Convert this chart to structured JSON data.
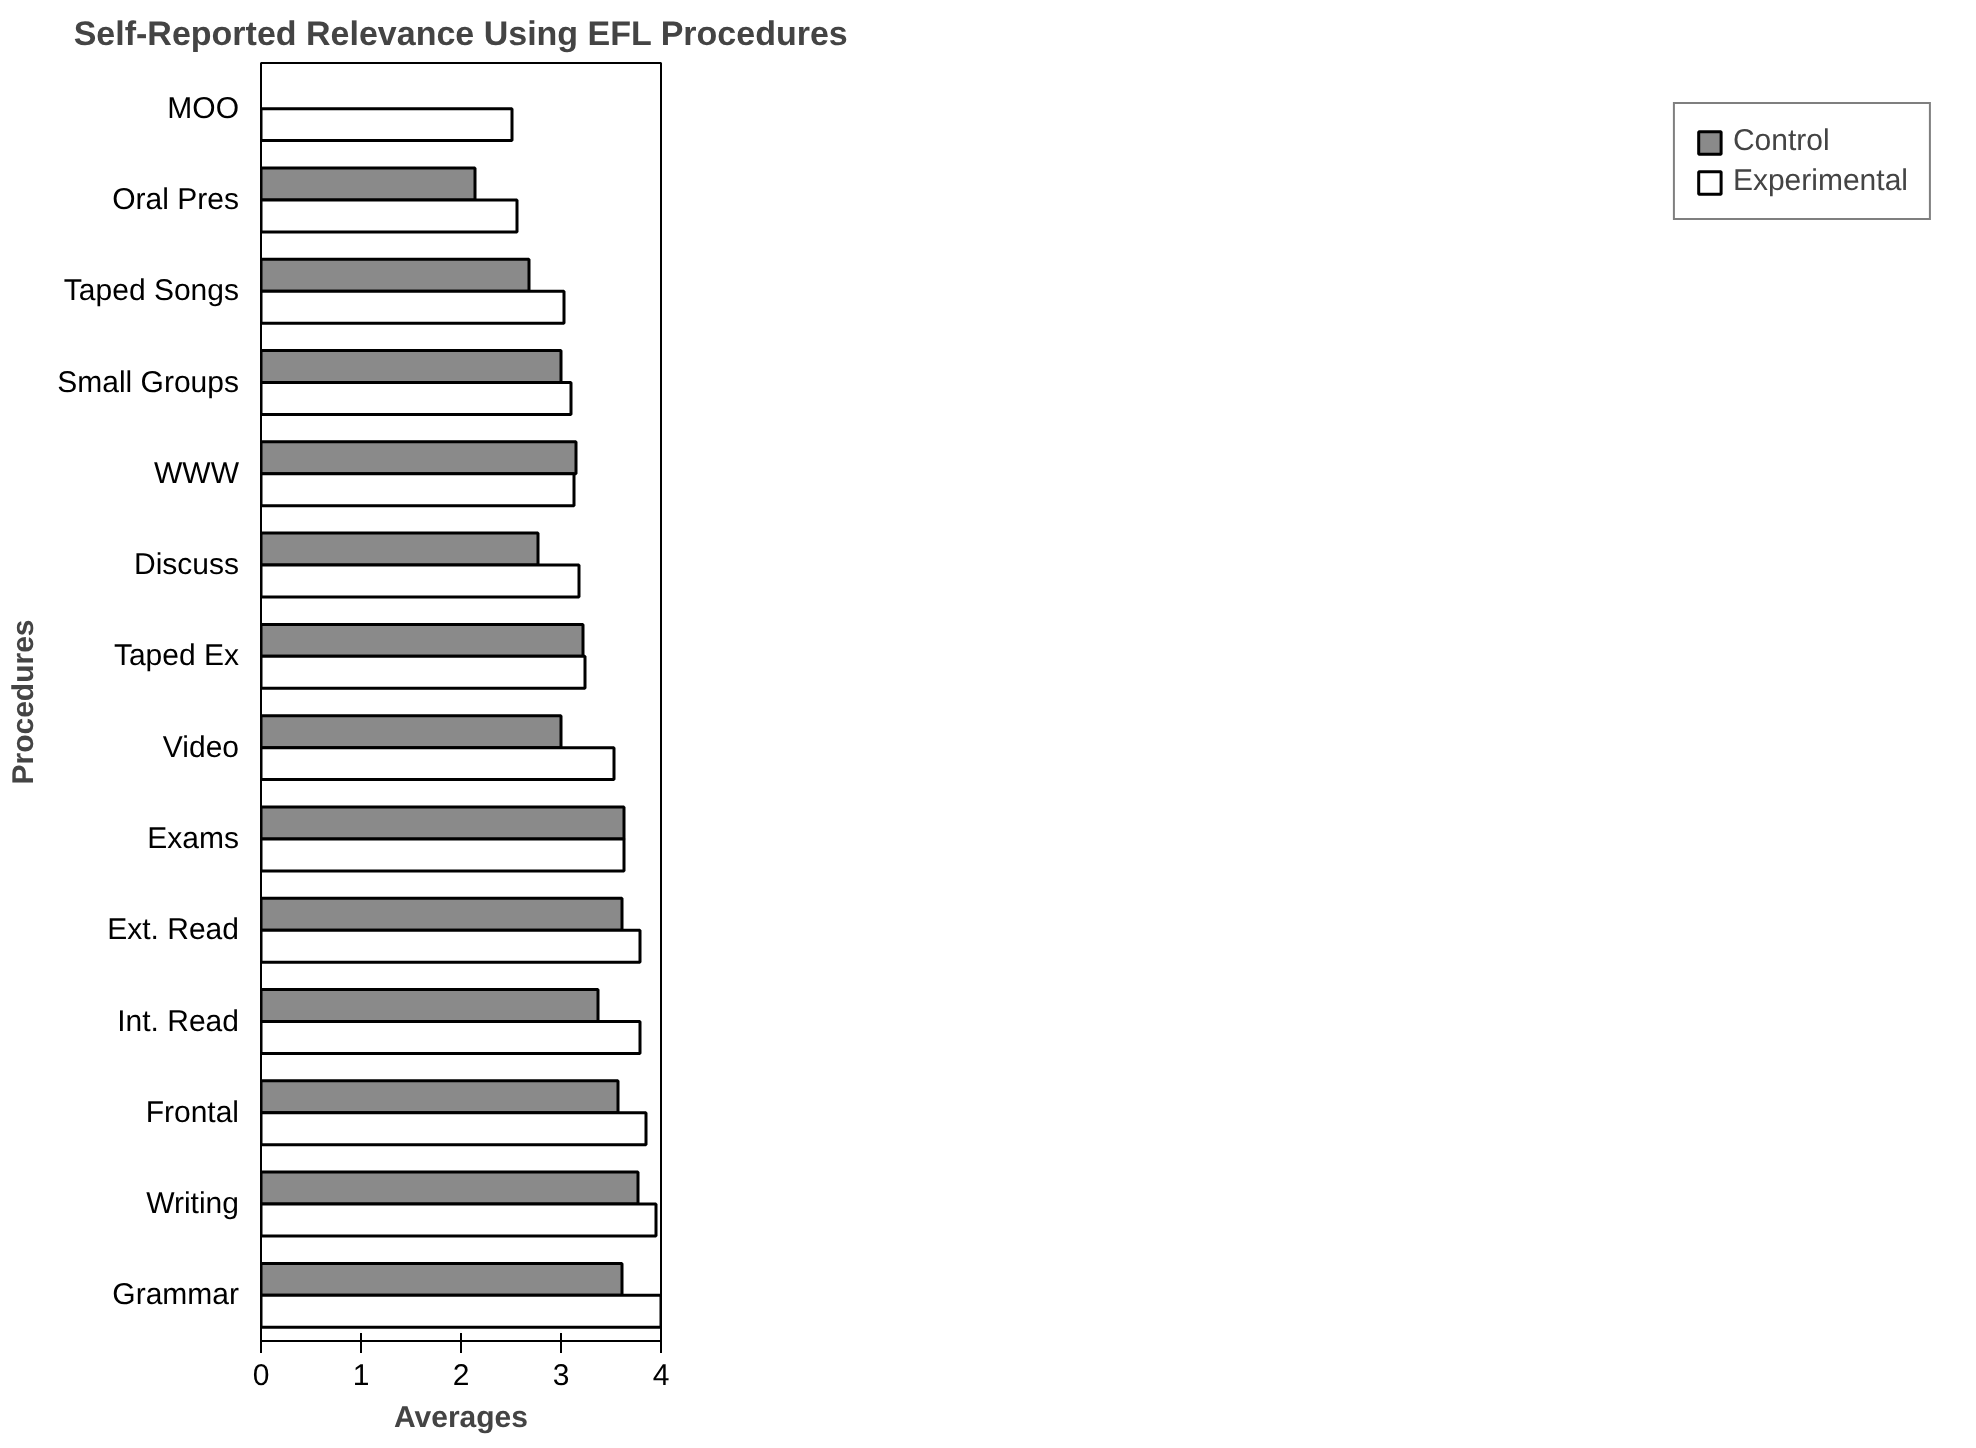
{
  "chart_data": {
    "type": "bar",
    "orientation": "horizontal",
    "title": "Self-Reported Relevance Using EFL Procedures",
    "xlabel": "Averages",
    "ylabel": "Procedures",
    "categories": [
      "MOO",
      "Oral Pres",
      "Taped Songs",
      "Small Groups",
      "WWW",
      "Discuss",
      "Taped Ex",
      "Video",
      "Exams",
      "Ext. Read",
      "Int. Read",
      "Frontal",
      "Writing",
      "Grammar"
    ],
    "series": [
      {
        "name": "Control",
        "color": "#8a8a8a",
        "values": [
          null,
          2.14,
          2.68,
          3.0,
          3.15,
          2.77,
          3.22,
          3.0,
          3.63,
          3.61,
          3.37,
          3.57,
          3.77,
          3.61
        ]
      },
      {
        "name": "Experimental",
        "color": "#ffffff",
        "values": [
          2.51,
          2.56,
          3.03,
          3.1,
          3.13,
          3.18,
          3.24,
          3.53,
          3.63,
          3.79,
          3.79,
          3.85,
          3.95,
          4.0
        ]
      }
    ],
    "xlim": [
      0,
      4
    ],
    "xticks": [
      0,
      1,
      2,
      3,
      4
    ],
    "grid": false,
    "legend": "right"
  }
}
